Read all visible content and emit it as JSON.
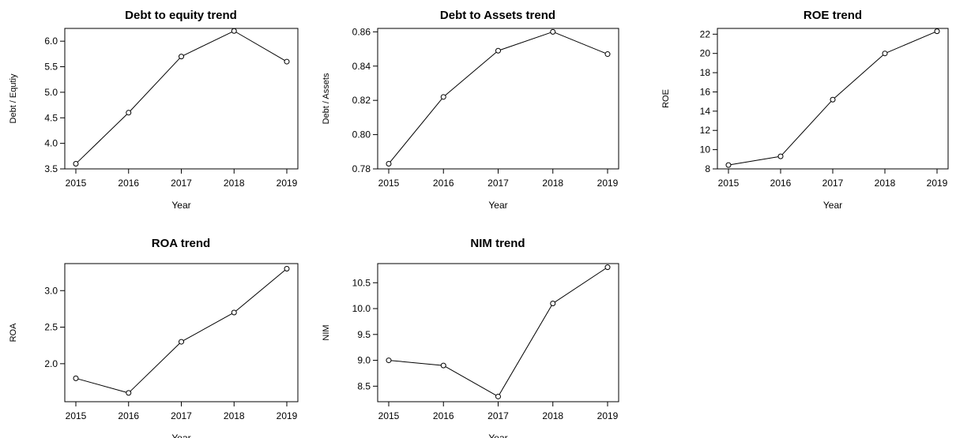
{
  "chart_data": [
    {
      "type": "line",
      "title": "Debt to equity trend",
      "xlabel": "Year",
      "ylabel": "Debt / Equtiy",
      "x": [
        2015,
        2016,
        2017,
        2018,
        2019
      ],
      "values": [
        3.6,
        4.6,
        5.7,
        6.2,
        5.6
      ],
      "yticks": [
        "3.5",
        "4.0",
        "4.5",
        "5.0",
        "5.5",
        "6.0"
      ],
      "ylim": [
        3.5,
        6.25
      ]
    },
    {
      "type": "line",
      "title": "Debt to Assets trend",
      "xlabel": "Year",
      "ylabel": "Debt / Assets",
      "x": [
        2015,
        2016,
        2017,
        2018,
        2019
      ],
      "values": [
        0.783,
        0.822,
        0.849,
        0.86,
        0.847
      ],
      "yticks": [
        "0.78",
        "0.80",
        "0.82",
        "0.84",
        "0.86"
      ],
      "ylim": [
        0.78,
        0.862
      ]
    },
    {
      "type": "line",
      "title": "ROE trend",
      "xlabel": "Year",
      "ylabel": "ROE",
      "x": [
        2015,
        2016,
        2017,
        2018,
        2019
      ],
      "values": [
        8.4,
        9.3,
        15.2,
        20.0,
        22.3
      ],
      "yticks": [
        "8",
        "10",
        "12",
        "14",
        "16",
        "18",
        "20",
        "22"
      ],
      "ylim": [
        8,
        22.6
      ]
    },
    {
      "type": "line",
      "title": "ROA trend",
      "xlabel": "Year",
      "ylabel": "ROA",
      "x": [
        2015,
        2016,
        2017,
        2018,
        2019
      ],
      "values": [
        1.8,
        1.6,
        2.3,
        2.7,
        3.3
      ],
      "yticks": [
        "2.0",
        "2.5",
        "3.0"
      ],
      "ylim": [
        1.48,
        3.37
      ]
    },
    {
      "type": "line",
      "title": "NIM trend",
      "xlabel": "Year",
      "ylabel": "NIM",
      "x": [
        2015,
        2016,
        2017,
        2018,
        2019
      ],
      "values": [
        9.0,
        8.9,
        8.3,
        10.1,
        10.8
      ],
      "yticks": [
        "8.5",
        "9.0",
        "9.5",
        "10.0",
        "10.5"
      ],
      "ylim": [
        8.2,
        10.87
      ]
    }
  ]
}
